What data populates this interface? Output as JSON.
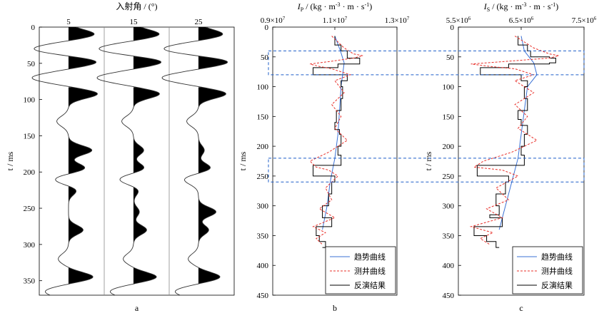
{
  "chart_data": [
    {
      "id": "a",
      "type": "seismic_wiggle",
      "panel_label": "a",
      "title": "入射角 / (°)",
      "ylabel": "t / ms",
      "ylim": [
        370,
        0
      ],
      "yticks": [
        0,
        50,
        100,
        150,
        200,
        250,
        300,
        350
      ],
      "traces": [
        {
          "angle": "5",
          "index": 0
        },
        {
          "angle": "15",
          "index": 1
        },
        {
          "angle": "25",
          "index": 2
        }
      ],
      "positive_lobes_ms": [
        {
          "t": 10,
          "amp": [
            0.9,
            0.9,
            0.85
          ]
        },
        {
          "t": 48,
          "amp": [
            1.0,
            1.0,
            1.05
          ]
        },
        {
          "t": 92,
          "amp": [
            1.0,
            0.9,
            0.95
          ]
        },
        {
          "t": 170,
          "amp": [
            0.8,
            0.35,
            0.2
          ]
        },
        {
          "t": 195,
          "amp": [
            0.6,
            0.4,
            0.45
          ]
        },
        {
          "t": 225,
          "amp": [
            0.3,
            0.2,
            0.0
          ]
        },
        {
          "t": 255,
          "amp": [
            0.0,
            0.2,
            0.6
          ]
        },
        {
          "t": 280,
          "amp": [
            0.5,
            0.45,
            0.35
          ]
        },
        {
          "t": 345,
          "amp": [
            0.85,
            0.8,
            0.75
          ]
        }
      ]
    },
    {
      "id": "b",
      "type": "line",
      "panel_label": "b",
      "title": "I",
      "title_sub": "P",
      "title_units": " / (kg · m",
      "title_sup1": "-3",
      "title_units2": " · m · s",
      "title_sup2": "-1",
      "title_end": ")",
      "xlim": [
        9000000.0,
        13000000.0
      ],
      "xticks": [
        {
          "v": 9000000.0,
          "mant": "0.9×10",
          "exp": "7"
        },
        {
          "v": 11000000.0,
          "mant": "1.1×10",
          "exp": "7"
        },
        {
          "v": 13000000.0,
          "mant": "1.3×10",
          "exp": "7"
        }
      ],
      "ylabel": "t / ms",
      "ylim": [
        450,
        0
      ],
      "yticks": [
        0,
        50,
        100,
        150,
        200,
        250,
        300,
        350,
        400,
        450
      ],
      "series": [
        {
          "name": "趋势曲线",
          "style": "trend",
          "t": [
            15,
            40,
            60,
            80,
            100,
            140,
            180,
            220,
            260,
            300,
            340
          ],
          "v": [
            11000000.0,
            11180000.0,
            11300000.0,
            11250000.0,
            11200000.0,
            11150000.0,
            11100000.0,
            11000000.0,
            10850000.0,
            10750000.0,
            10600000.0
          ]
        },
        {
          "name": "反演结果",
          "style": "inv",
          "t": [
            15,
            30,
            40,
            50,
            52,
            60,
            62,
            68,
            70,
            80,
            90,
            100,
            120,
            140,
            160,
            172,
            180,
            200,
            215,
            232,
            240,
            250,
            260,
            280,
            300,
            315,
            320,
            335,
            350,
            360,
            370
          ],
          "v": [
            11000000.0,
            11200000.0,
            11400000.0,
            11400000.0,
            11800000.0,
            11800000.0,
            11100000.0,
            10300000.0,
            10300000.0,
            11400000.0,
            11200000.0,
            11250000.0,
            11200000.0,
            11050000.0,
            11000000.0,
            11150000.0,
            11200000.0,
            11100000.0,
            11200000.0,
            10300000.0,
            10300000.0,
            11000000.0,
            10900000.0,
            10800000.0,
            10600000.0,
            10600000.0,
            10900000.0,
            10400000.0,
            10500000.0,
            10700000.0,
            10600000.0
          ]
        },
        {
          "name": "测井曲线",
          "style": "well",
          "t": [
            15,
            25,
            35,
            45,
            48,
            52,
            58,
            62,
            66,
            70,
            80,
            90,
            110,
            130,
            150,
            170,
            190,
            210,
            225,
            235,
            240,
            250,
            270,
            290,
            305,
            320,
            335,
            345,
            355,
            365
          ],
          "v": [
            10900000.0,
            11100000.0,
            11300000.0,
            11600000.0,
            11900000.0,
            11600000.0,
            10800000.0,
            10200000.0,
            10500000.0,
            10900000.0,
            11500000.0,
            11000000.0,
            11300000.0,
            10900000.0,
            11200000.0,
            11000000.0,
            11400000.0,
            10800000.0,
            10200000.0,
            10400000.0,
            10800000.0,
            11100000.0,
            10700000.0,
            10900000.0,
            10500000.0,
            11000000.0,
            10300000.0,
            10700000.0,
            10400000.0,
            10600000.0
          ]
        }
      ],
      "highlight_bands_ms": [
        [
          40,
          80
        ],
        [
          220,
          260
        ]
      ],
      "legend_position": "bottom-right"
    },
    {
      "id": "c",
      "type": "line",
      "panel_label": "c",
      "title": "I",
      "title_sub": "S",
      "title_units": " / (kg · m",
      "title_sup1": "-3",
      "title_units2": " · m · s",
      "title_sup2": "-1",
      "title_end": ")",
      "xlim": [
        5500000.0,
        7500000.0
      ],
      "xticks": [
        {
          "v": 5500000.0,
          "mant": "5.5×10",
          "exp": "6"
        },
        {
          "v": 6500000.0,
          "mant": "6.5×10",
          "exp": "6"
        },
        {
          "v": 7500000.0,
          "mant": "7.5×10",
          "exp": "6"
        }
      ],
      "ylabel": "t / ms",
      "ylim": [
        450,
        0
      ],
      "yticks": [
        0,
        50,
        100,
        150,
        200,
        250,
        300,
        350,
        400,
        450
      ],
      "series": [
        {
          "name": "趋势曲线",
          "style": "trend",
          "t": [
            15,
            40,
            60,
            80,
            100,
            140,
            180,
            220,
            260,
            300,
            340
          ],
          "v": [
            6500000.0,
            6550000.0,
            6700000.0,
            6750000.0,
            6600000.0,
            6550000.0,
            6500000.0,
            6450000.0,
            6350000.0,
            6250000.0,
            6150000.0
          ]
        },
        {
          "name": "反演结果",
          "style": "inv",
          "t": [
            15,
            30,
            40,
            50,
            52,
            60,
            62,
            68,
            70,
            80,
            90,
            100,
            120,
            140,
            155,
            165,
            180,
            200,
            215,
            232,
            240,
            250,
            260,
            280,
            300,
            315,
            320,
            335,
            350,
            360,
            370
          ],
          "v": [
            6450000.0,
            6600000.0,
            6650000.0,
            6950000.0,
            7050000.0,
            6950000.0,
            6300000.0,
            5850000.0,
            5850000.0,
            6500000.0,
            6600000.0,
            6550000.0,
            6600000.0,
            6450000.0,
            6500000.0,
            6600000.0,
            6550000.0,
            6500000.0,
            6550000.0,
            5800000.0,
            5800000.0,
            6300000.0,
            6250000.0,
            6100000.0,
            6150000.0,
            6000000.0,
            6200000.0,
            5750000.0,
            5950000.0,
            6100000.0,
            6150000.0
          ]
        },
        {
          "name": "测井曲线",
          "style": "well",
          "t": [
            15,
            25,
            35,
            45,
            48,
            52,
            58,
            62,
            66,
            70,
            80,
            90,
            110,
            130,
            150,
            170,
            190,
            210,
            225,
            235,
            240,
            250,
            270,
            290,
            305,
            320,
            335,
            345,
            355,
            365
          ],
          "v": [
            6400000.0,
            6550000.0,
            6700000.0,
            6950000.0,
            7100000.0,
            6950000.0,
            6200000.0,
            5700000.0,
            6000000.0,
            6400000.0,
            6700000.0,
            6400000.0,
            6700000.0,
            6400000.0,
            6600000.0,
            6450000.0,
            6750000.0,
            6350000.0,
            5900000.0,
            5750000.0,
            6200000.0,
            6450000.0,
            6100000.0,
            6300000.0,
            5950000.0,
            6200000.0,
            5700000.0,
            6050000.0,
            5850000.0,
            6000000.0
          ]
        }
      ],
      "highlight_bands_ms": [
        [
          40,
          80
        ],
        [
          220,
          260
        ]
      ],
      "legend_position": "bottom-right"
    }
  ],
  "legend": {
    "trend": "趋势曲线",
    "well": "测井曲线",
    "inv": "反演结果"
  }
}
